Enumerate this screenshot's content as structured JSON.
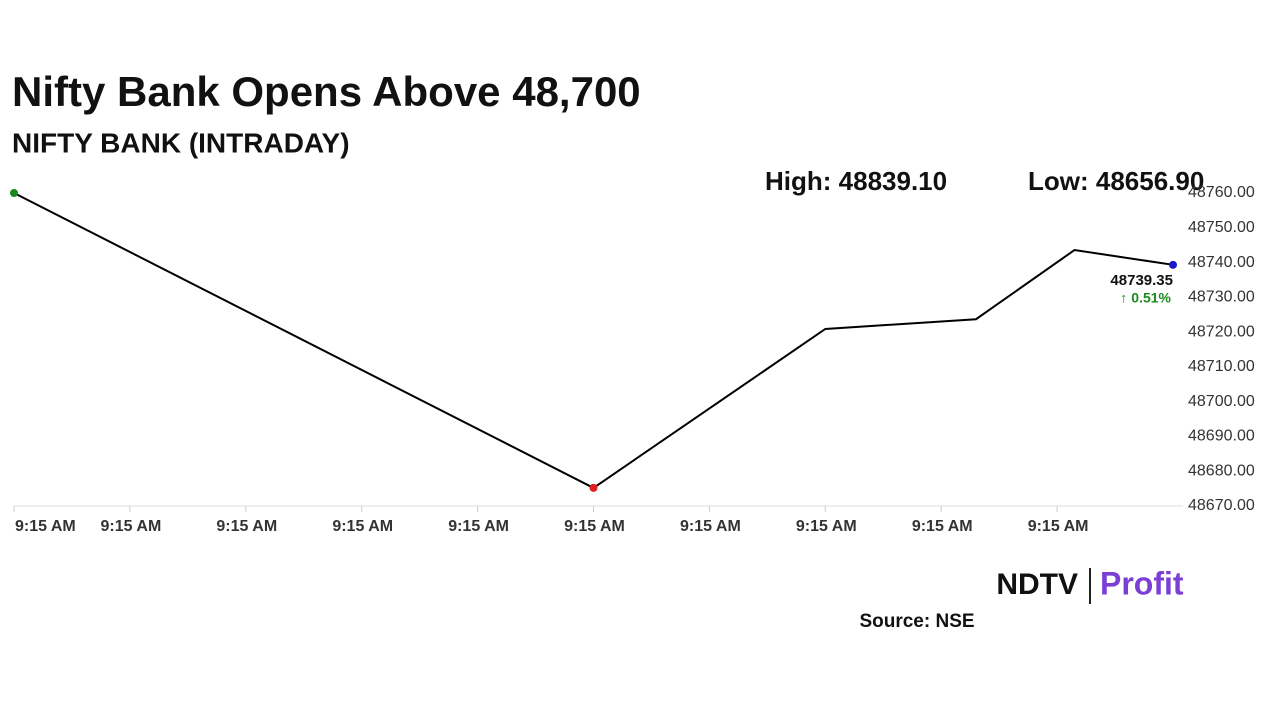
{
  "chart_data": {
    "type": "line",
    "title": "Nifty Bank Opens Above 48,700",
    "subtitle": "NIFTY BANK (INTRADAY)",
    "high": "High: 48839.10",
    "low": "Low: 48656.90",
    "x": [
      0,
      5,
      7,
      8.3,
      9.15,
      10
    ],
    "series": [
      {
        "color": "#000000",
        "values": [
          48760,
          48675.2,
          48720.9,
          48723.7,
          48743.6,
          48739.35
        ]
      }
    ],
    "markers": [
      {
        "index": 0,
        "color": "#1a8a1a"
      },
      {
        "index": 1,
        "color": "#e02020"
      },
      {
        "index": 5,
        "color": "#1a1acc"
      }
    ],
    "annotations": [
      "48739.35",
      "↑ 0.51%"
    ],
    "xlim": [
      0,
      10
    ],
    "xticks": [
      {
        "value": 0,
        "label": "9:15 AM"
      },
      {
        "value": 1,
        "label": "9:15 AM"
      },
      {
        "value": 2,
        "label": "9:15 AM"
      },
      {
        "value": 3,
        "label": "9:15 AM"
      },
      {
        "value": 4,
        "label": "9:15 AM"
      },
      {
        "value": 5,
        "label": "9:15 AM"
      },
      {
        "value": 6,
        "label": "9:15 AM"
      },
      {
        "value": 7,
        "label": "9:15 AM"
      },
      {
        "value": 8,
        "label": "9:15 AM"
      },
      {
        "value": 9,
        "label": "9:15 AM"
      }
    ],
    "ylim": [
      48670,
      48760
    ],
    "yticks": [
      {
        "value": 48670,
        "label": "48670.00"
      },
      {
        "value": 48680,
        "label": "48680.00"
      },
      {
        "value": 48690,
        "label": "48690.00"
      },
      {
        "value": 48700,
        "label": "48700.00"
      },
      {
        "value": 48710,
        "label": "48710.00"
      },
      {
        "value": 48720,
        "label": "48720.00"
      },
      {
        "value": 48730,
        "label": "48730.00"
      },
      {
        "value": 48740,
        "label": "48740.00"
      },
      {
        "value": 48750,
        "label": "48750.00"
      },
      {
        "value": 48760,
        "label": "48760.00"
      }
    ],
    "logo": [
      "NDTV",
      "Profit"
    ],
    "source": "Source: NSE"
  }
}
